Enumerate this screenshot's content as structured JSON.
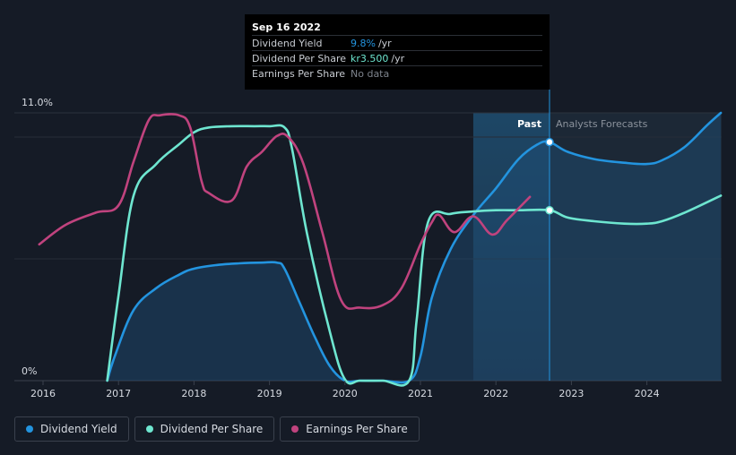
{
  "tooltip": {
    "date": "Sep 16 2022",
    "rows": [
      {
        "label": "Dividend Yield",
        "value": "9.8%",
        "unit": "/yr",
        "color": "#2394df"
      },
      {
        "label": "Dividend Per Share",
        "value": "kr3.500",
        "unit": "/yr",
        "color": "#6ee6d0"
      },
      {
        "label": "Earnings Per Share",
        "value": "No data",
        "unit": "",
        "color": "#7d838c"
      }
    ]
  },
  "regions": {
    "past": "Past",
    "forecast": "Analysts Forecasts"
  },
  "legend": [
    {
      "label": "Dividend Yield",
      "color": "#2394df"
    },
    {
      "label": "Dividend Per Share",
      "color": "#6ee6d0"
    },
    {
      "label": "Earnings Per Share",
      "color": "#c0437e"
    }
  ],
  "chart_data": {
    "type": "line",
    "title": "",
    "xlabel": "",
    "ylabel": "",
    "xlim": [
      2015.95,
      2024.98
    ],
    "ylim": [
      0,
      11.0
    ],
    "y_tick_labels": [
      "0%",
      "11.0%"
    ],
    "x_ticks": [
      2016,
      2017,
      2018,
      2019,
      2020,
      2021,
      2022,
      2023,
      2024
    ],
    "forecast_band_start": 2021.7,
    "forecast_start": 2022.71,
    "highlight": {
      "x": 2022.71,
      "dividend_yield": 9.8,
      "dividend_per_share_scaled": 7.0
    },
    "series": [
      {
        "name": "Dividend Yield",
        "color": "#2394df",
        "unit": "%",
        "x": [
          2016.85,
          2016.95,
          2017.2,
          2017.5,
          2017.8,
          2018.0,
          2018.3,
          2018.6,
          2018.9,
          2019.1,
          2019.2,
          2019.4,
          2019.6,
          2019.8,
          2020.0,
          2020.2,
          2020.5,
          2020.85,
          2021.0,
          2021.15,
          2021.4,
          2021.7,
          2022.0,
          2022.3,
          2022.55,
          2022.71,
          2022.95,
          2023.3,
          2023.7,
          2024.0,
          2024.2,
          2024.5,
          2024.8,
          2024.98
        ],
        "values": [
          0,
          1.0,
          2.9,
          3.8,
          4.35,
          4.6,
          4.75,
          4.82,
          4.85,
          4.85,
          4.6,
          3.2,
          1.8,
          0.6,
          0.0,
          0.0,
          0.0,
          0.0,
          1.0,
          3.4,
          5.4,
          6.8,
          7.9,
          9.1,
          9.7,
          9.8,
          9.4,
          9.1,
          8.95,
          8.9,
          9.05,
          9.6,
          10.5,
          11.0
        ]
      },
      {
        "name": "Dividend Per Share",
        "color": "#6ee6d0",
        "unit": "kr (scaled)",
        "x": [
          2016.85,
          2017.0,
          2017.2,
          2017.5,
          2017.8,
          2018.0,
          2018.2,
          2018.5,
          2018.8,
          2019.0,
          2019.2,
          2019.3,
          2019.5,
          2019.8,
          2020.0,
          2020.2,
          2020.5,
          2020.85,
          2020.95,
          2021.1,
          2021.4,
          2021.7,
          2022.0,
          2022.3,
          2022.71,
          2022.95,
          2023.3,
          2023.7,
          2024.0,
          2024.2,
          2024.5,
          2024.98
        ],
        "values": [
          0,
          3.5,
          7.6,
          8.9,
          9.7,
          10.2,
          10.4,
          10.45,
          10.45,
          10.45,
          10.4,
          9.5,
          6.0,
          2.0,
          0.05,
          0.0,
          0.0,
          0.0,
          2.5,
          6.5,
          6.85,
          6.95,
          7.0,
          7.0,
          7.0,
          6.7,
          6.55,
          6.45,
          6.45,
          6.55,
          6.9,
          7.6
        ]
      },
      {
        "name": "Earnings Per Share",
        "color": "#c0437e",
        "unit": "kr (scaled)",
        "x": [
          2015.95,
          2016.3,
          2016.7,
          2017.0,
          2017.2,
          2017.4,
          2017.55,
          2017.8,
          2017.95,
          2018.1,
          2018.2,
          2018.5,
          2018.7,
          2018.9,
          2019.1,
          2019.25,
          2019.45,
          2019.7,
          2019.95,
          2020.2,
          2020.5,
          2020.75,
          2021.0,
          2021.15,
          2021.25,
          2021.45,
          2021.7,
          2021.95,
          2022.15,
          2022.45
        ],
        "values": [
          5.6,
          6.4,
          6.9,
          7.2,
          9.0,
          10.7,
          10.9,
          10.9,
          10.4,
          8.2,
          7.7,
          7.4,
          8.8,
          9.4,
          10.05,
          10.0,
          8.9,
          6.1,
          3.3,
          3.0,
          3.1,
          3.8,
          5.6,
          6.5,
          6.8,
          6.1,
          6.75,
          6.0,
          6.6,
          7.55
        ]
      }
    ]
  }
}
